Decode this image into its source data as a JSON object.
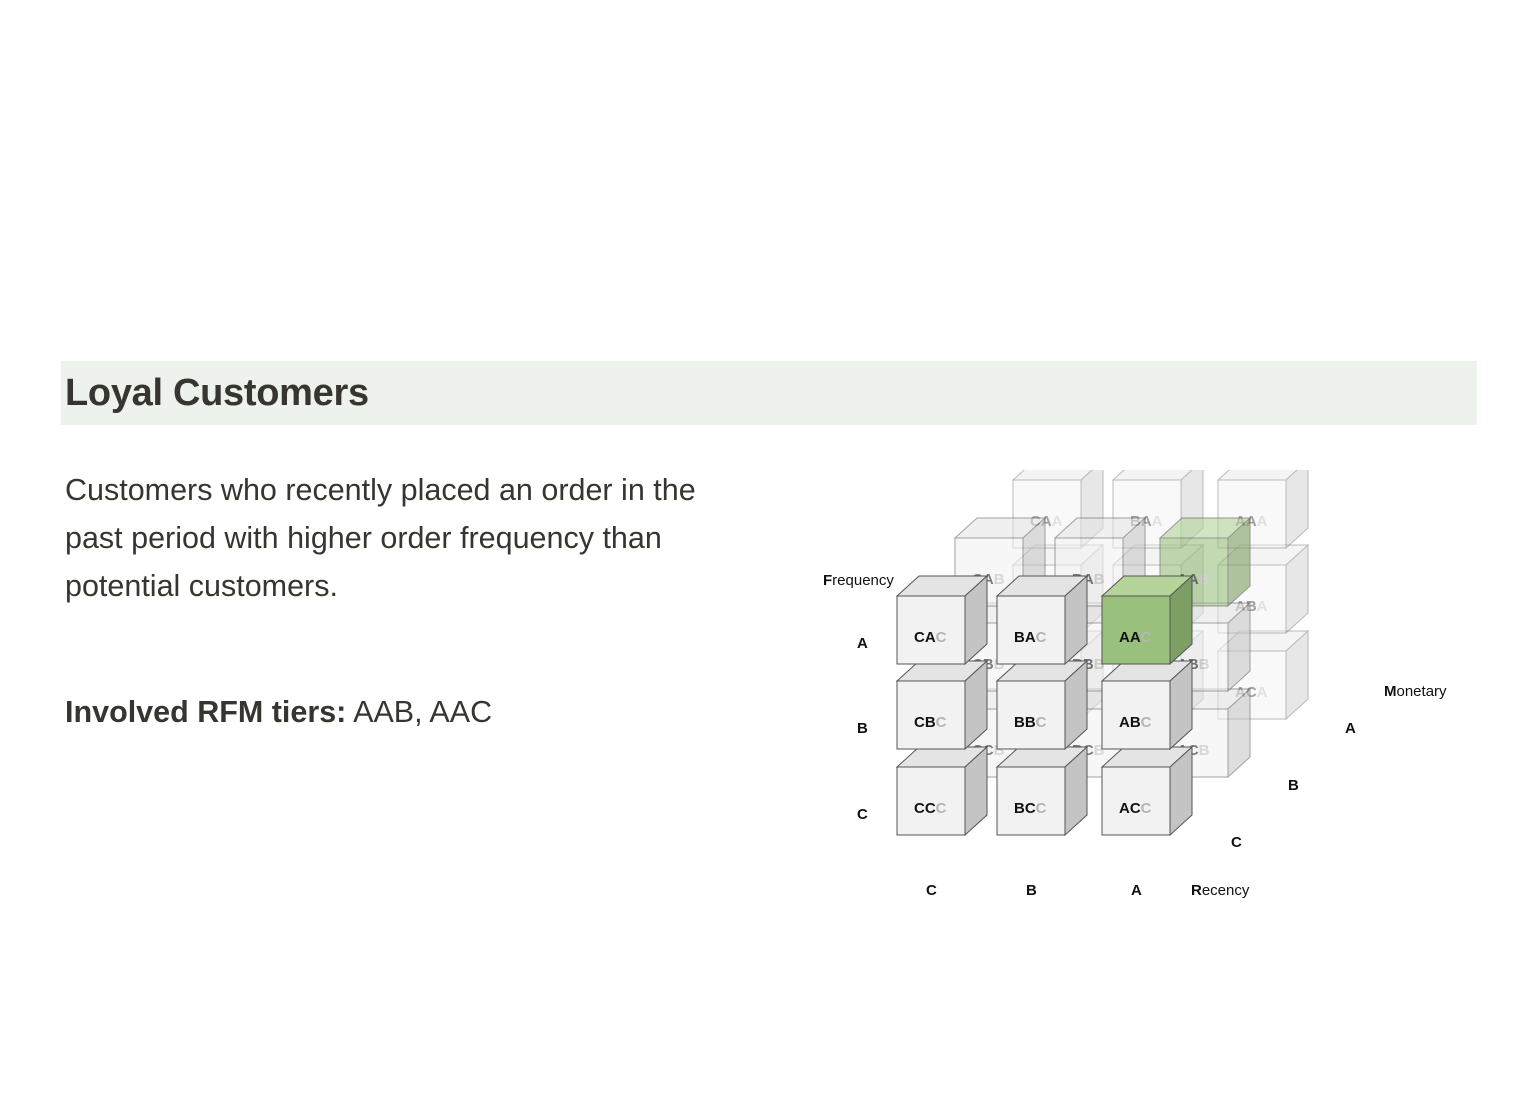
{
  "section": {
    "title": "Loyal Customers",
    "description": "Customers who recently placed an order in the past period with higher order frequency than potential customers.",
    "tiers_label": "Involved RFM tiers:",
    "tiers_value": "AAB, AAC"
  },
  "diagram": {
    "axes": {
      "frequency": {
        "label": "Frequency",
        "ticks": [
          "A",
          "B",
          "C"
        ]
      },
      "recency": {
        "label": "Recency",
        "ticks": [
          "C",
          "B",
          "A"
        ]
      },
      "monetary": {
        "label": "Monetary",
        "ticks": [
          "A",
          "B",
          "C"
        ]
      }
    },
    "recency_tiers": [
      "C",
      "B",
      "A"
    ],
    "frequency_tiers": [
      "A",
      "B",
      "C"
    ],
    "monetary_tiers": [
      "C",
      "B",
      "A"
    ],
    "highlighted_cells": [
      "AAB",
      "AAC"
    ],
    "colors": {
      "highlight_front": "#9ac07e",
      "highlight_side": "#7d9f63",
      "highlight_top": "#b4d49a",
      "cube_front": "#f2f2f2",
      "cube_side": "#c4c4c4",
      "cube_top": "#e4e4e4",
      "cube_stroke": "#555555",
      "title_bar_bg": "#edf3ec"
    }
  }
}
